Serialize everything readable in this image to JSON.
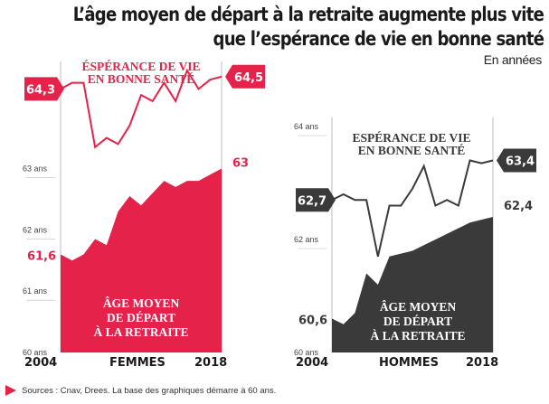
{
  "title_line1": "L’âge moyen de départ à la retraite augmente plus vite",
  "title_line2": "que l’espérance de vie en bonne santé",
  "unit_note": "En années",
  "footer": "Sources : Cnav, Drees. La base des graphiques démarre à 60 ans.",
  "colors": {
    "women": "#e4224a",
    "men": "#3a3a3a",
    "axis": "#bdbdbd"
  },
  "chart_data": [
    {
      "type": "area",
      "panel": "FEMMES",
      "x": [
        2004,
        2005,
        2006,
        2007,
        2008,
        2009,
        2010,
        2011,
        2012,
        2013,
        2014,
        2015,
        2016,
        2017,
        2018
      ],
      "xlabels": [
        "2004",
        "2018"
      ],
      "y_ticks": [
        "63 ans",
        "62 ans",
        "61 ans",
        "60 ans"
      ],
      "ylim": [
        60,
        64.6
      ],
      "series": [
        {
          "name": "ÉSPÉRANCE DE VIE\nEN BONNE SANTÉ",
          "kind": "line",
          "values": [
            64.3,
            64.4,
            64.4,
            63.35,
            63.5,
            63.4,
            63.7,
            64.2,
            64.1,
            64.4,
            64.1,
            64.6,
            64.3,
            64.45,
            64.5
          ]
        },
        {
          "name": "ÂGE MOYEN\nDE DÉPART\nÀ LA RETRAITE",
          "kind": "area",
          "values": [
            61.6,
            61.5,
            61.6,
            61.85,
            61.75,
            62.3,
            62.55,
            62.4,
            62.6,
            62.8,
            62.7,
            62.8,
            62.8,
            62.9,
            63.0
          ]
        }
      ],
      "start_labels": [
        "64,3",
        "61,6"
      ],
      "end_labels": [
        "64,5",
        "63"
      ]
    },
    {
      "type": "area",
      "panel": "HOMMES",
      "x": [
        2004,
        2005,
        2006,
        2007,
        2008,
        2009,
        2010,
        2011,
        2012,
        2013,
        2014,
        2015,
        2016,
        2017,
        2018
      ],
      "xlabels": [
        "2004",
        "2018"
      ],
      "y_ticks": [
        "64 ans",
        "62 ans",
        "60 ans"
      ],
      "ylim": [
        60,
        64
      ],
      "series": [
        {
          "name": "ESPÉRANCE DE VIE\nEN BONNE SANTÉ",
          "kind": "line",
          "values": [
            62.7,
            62.8,
            62.7,
            62.7,
            61.7,
            62.6,
            62.6,
            62.9,
            63.3,
            62.6,
            62.7,
            62.6,
            63.4,
            63.35,
            63.4
          ]
        },
        {
          "name": "ÂGE MOYEN\nDE DÉPART\nÀ LA RETRAITE",
          "kind": "area",
          "values": [
            60.6,
            60.5,
            60.7,
            61.4,
            61.2,
            61.7,
            61.75,
            61.8,
            61.9,
            62.0,
            62.1,
            62.2,
            62.3,
            62.35,
            62.4
          ]
        }
      ],
      "start_labels": [
        "62,7",
        "60,6"
      ],
      "end_labels": [
        "63,4",
        "62,4"
      ]
    }
  ]
}
